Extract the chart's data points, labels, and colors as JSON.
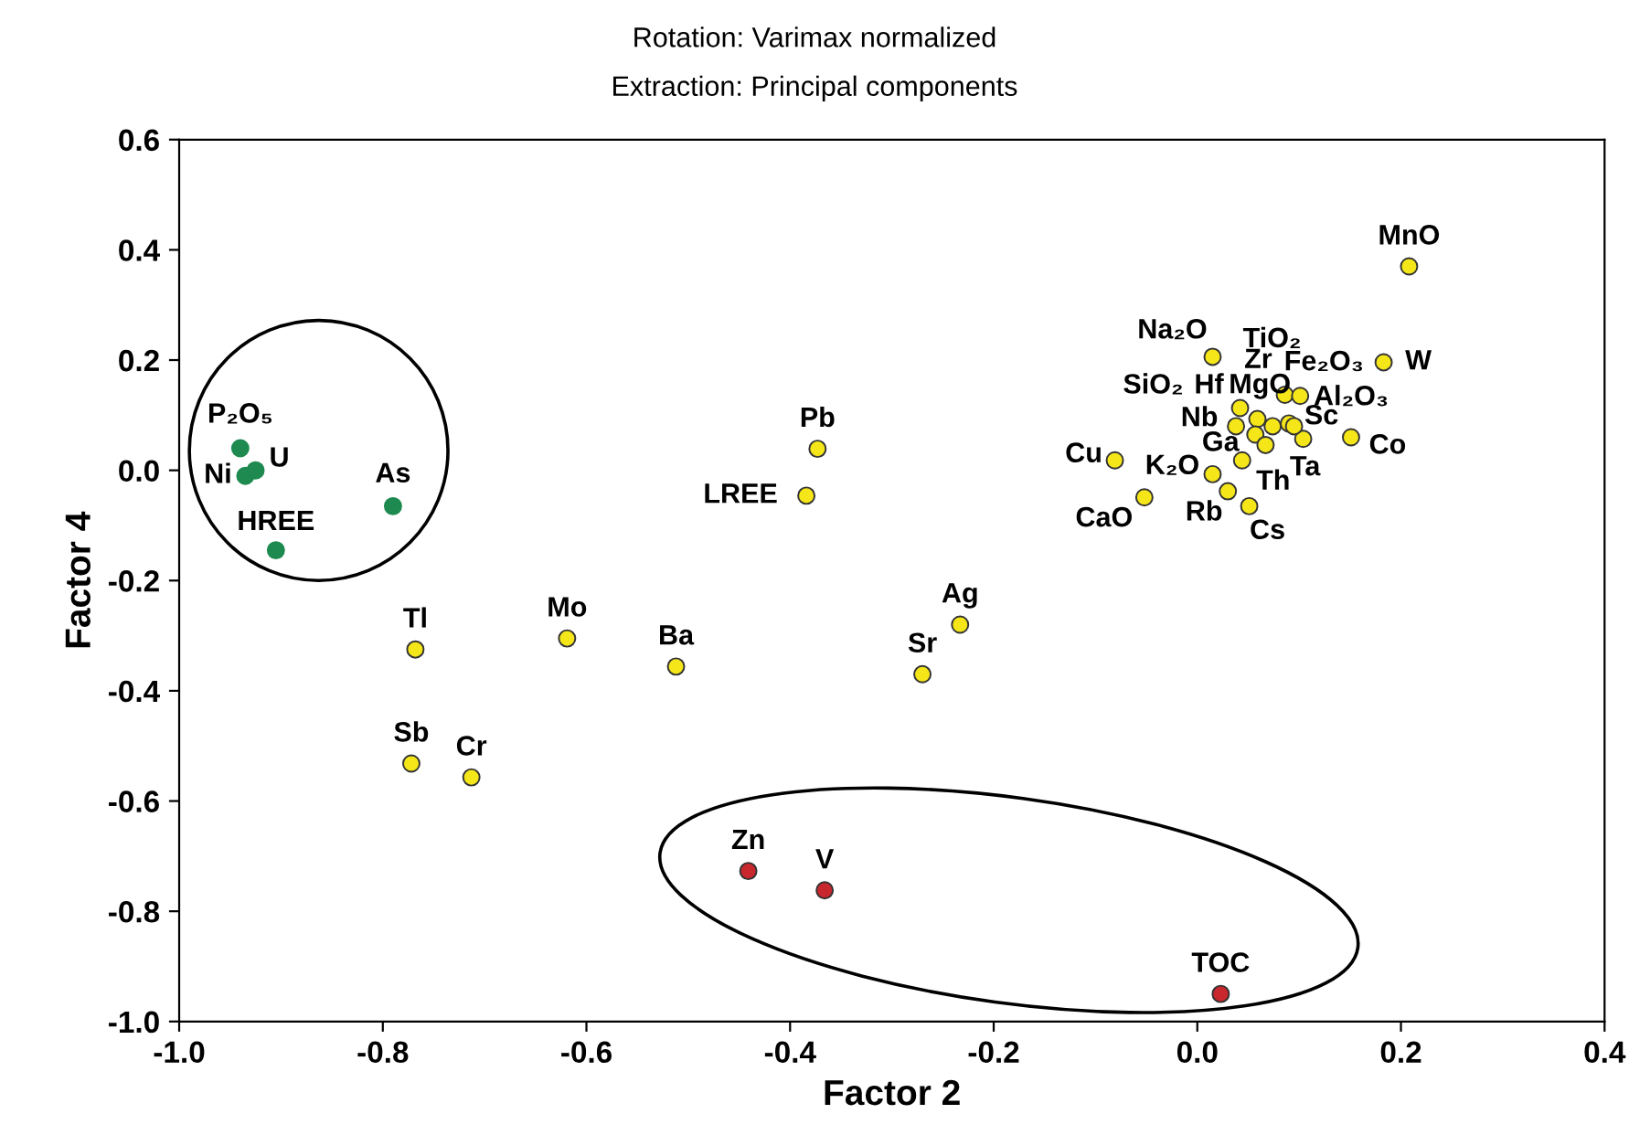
{
  "chart_data": {
    "type": "scatter",
    "title": "Rotation: Varimax normalized",
    "subtitle": "Extraction: Principal components",
    "xlabel": "Factor 2",
    "ylabel": "Factor 4",
    "xlim": [
      -1.0,
      0.4
    ],
    "ylim": [
      -1.0,
      0.6
    ],
    "xticks": [
      {
        "value": -1.0,
        "label": "-1.0"
      },
      {
        "value": -0.8,
        "label": "-0.8"
      },
      {
        "value": -0.6,
        "label": "-0.6"
      },
      {
        "value": -0.4,
        "label": "-0.4"
      },
      {
        "value": -0.2,
        "label": "-0.2"
      },
      {
        "value": 0,
        "label": "0.0"
      },
      {
        "value": 0.2,
        "label": "0.2"
      },
      {
        "value": 0.4,
        "label": "0.4"
      }
    ],
    "yticks": [
      {
        "value": -1.0,
        "label": "-1.0"
      },
      {
        "value": -0.8,
        "label": "-0.8"
      },
      {
        "value": -0.6,
        "label": "-0.6"
      },
      {
        "value": -0.4,
        "label": "-0.4"
      },
      {
        "value": -0.2,
        "label": "-0.2"
      },
      {
        "value": 0,
        "label": "0.0"
      },
      {
        "value": 0.2,
        "label": "0.2"
      },
      {
        "value": 0.4,
        "label": "0.4"
      },
      {
        "value": 0.6,
        "label": "0.6"
      }
    ],
    "grid": false,
    "marker": "circle",
    "series": [
      {
        "color": "#1e8a50",
        "x": [
          -0.94,
          -0.935,
          -0.925,
          -0.905,
          -0.79
        ],
        "values": [
          0.04,
          -0.01,
          0.0,
          -0.145,
          -0.065
        ]
      },
      {
        "color": "#f5e61a",
        "x": [
          -0.768,
          -0.619,
          -0.512,
          -0.772,
          -0.713,
          -0.373,
          -0.384,
          -0.233,
          -0.27,
          0.208,
          0.183,
          0.015,
          -0.081,
          -0.052,
          0.015,
          0.03,
          0.051,
          0.044,
          0.151,
          0.104,
          0.042,
          0.038,
          0.059,
          0.057,
          0.067,
          0.074,
          0.086,
          0.101,
          0.09,
          0.095
        ],
        "values": [
          -0.325,
          -0.305,
          -0.356,
          -0.532,
          -0.557,
          0.039,
          -0.046,
          -0.28,
          -0.37,
          0.37,
          0.196,
          0.206,
          0.018,
          -0.049,
          -0.007,
          -0.038,
          -0.065,
          0.018,
          0.06,
          0.057,
          0.113,
          0.08,
          0.093,
          0.065,
          0.046,
          0.08,
          0.137,
          0.135,
          0.085,
          0.08
        ]
      },
      {
        "color": "#c8272d",
        "x": [
          -0.441,
          -0.366,
          0.023
        ],
        "values": [
          -0.727,
          -0.762,
          -0.95
        ]
      }
    ],
    "annotations": [
      {
        "text": "P₂O₅",
        "x": -0.94,
        "y": 0.04
      },
      {
        "text": "Ni",
        "x": -0.935,
        "y": -0.01
      },
      {
        "text": "U",
        "x": -0.925,
        "y": 0.0
      },
      {
        "text": "HREE",
        "x": -0.905,
        "y": -0.145
      },
      {
        "text": "As",
        "x": -0.79,
        "y": -0.065
      },
      {
        "text": "Tl",
        "x": -0.768,
        "y": -0.325
      },
      {
        "text": "Mo",
        "x": -0.619,
        "y": -0.305
      },
      {
        "text": "Ba",
        "x": -0.512,
        "y": -0.356
      },
      {
        "text": "Sb",
        "x": -0.772,
        "y": -0.532
      },
      {
        "text": "Cr",
        "x": -0.713,
        "y": -0.557
      },
      {
        "text": "Pb",
        "x": -0.373,
        "y": 0.039
      },
      {
        "text": "LREE",
        "x": -0.384,
        "y": -0.046
      },
      {
        "text": "Ag",
        "x": -0.233,
        "y": -0.28
      },
      {
        "text": "Sr",
        "x": -0.27,
        "y": -0.37
      },
      {
        "text": "MnO",
        "x": 0.208,
        "y": 0.37
      },
      {
        "text": "W",
        "x": 0.183,
        "y": 0.196
      },
      {
        "text": "Na₂O",
        "x": 0.015,
        "y": 0.206
      },
      {
        "text": "Cu",
        "x": -0.081,
        "y": 0.018
      },
      {
        "text": "CaO",
        "x": -0.052,
        "y": -0.049
      },
      {
        "text": "K₂O",
        "x": 0.015,
        "y": -0.007
      },
      {
        "text": "Rb",
        "x": 0.03,
        "y": -0.038
      },
      {
        "text": "Cs",
        "x": 0.051,
        "y": -0.065
      },
      {
        "text": "Th",
        "x": 0.044,
        "y": 0.018
      },
      {
        "text": "Co",
        "x": 0.151,
        "y": 0.06
      },
      {
        "text": "Ta",
        "x": 0.104,
        "y": 0.057
      },
      {
        "text": "Hf",
        "x": 0.042,
        "y": 0.113
      },
      {
        "text": "Nb",
        "x": 0.038,
        "y": 0.08
      },
      {
        "text": "SiO₂",
        "x": 0.059,
        "y": 0.093
      },
      {
        "text": "Ga",
        "x": 0.057,
        "y": 0.065
      },
      {
        "text": "Zr",
        "x": 0.067,
        "y": 0.046
      },
      {
        "text": "TiO₂",
        "x": 0.086,
        "y": 0.137
      },
      {
        "text": "MgO",
        "x": 0.074,
        "y": 0.08
      },
      {
        "text": "Fe₂O₃",
        "x": 0.101,
        "y": 0.135
      },
      {
        "text": "Al₂O₃",
        "x": 0.09,
        "y": 0.085
      },
      {
        "text": "Sc",
        "x": 0.095,
        "y": 0.08
      },
      {
        "text": "Zn",
        "x": -0.441,
        "y": -0.727
      },
      {
        "text": "V",
        "x": -0.366,
        "y": -0.762
      },
      {
        "text": "TOC",
        "x": 0.023,
        "y": -0.95
      }
    ]
  }
}
